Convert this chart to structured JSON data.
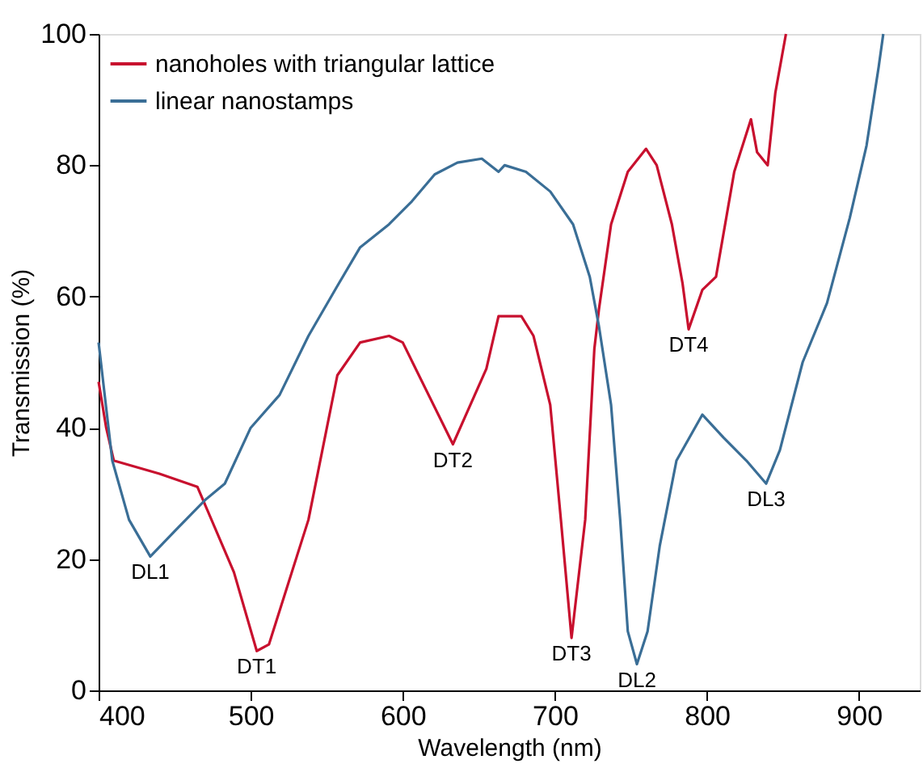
{
  "chart_data": {
    "type": "line",
    "xlabel": "Wavelength (nm)",
    "ylabel": "Transmission (%)",
    "xlim": [
      400,
      940
    ],
    "xticks": [
      400,
      500,
      600,
      700,
      800,
      900
    ],
    "ylim": [
      0,
      100
    ],
    "yticks": [
      0,
      20,
      40,
      60,
      80,
      100
    ],
    "grid": false,
    "legend": "top left",
    "marker": "none",
    "line_style": "solid",
    "series": [
      {
        "name": "nanoholes with triangular lattice",
        "color": "#c8102e",
        "x": [
          400,
          405,
          410,
          440,
          465,
          489,
          504,
          512,
          538,
          557,
          572,
          591,
          600,
          633,
          655,
          663,
          667,
          678,
          686,
          697,
          704,
          711,
          720,
          726,
          729,
          737,
          748,
          760,
          767,
          777,
          784,
          788,
          797,
          806,
          818,
          829,
          833,
          840,
          845,
          852
        ],
        "values": [
          47,
          40,
          35,
          33,
          31,
          18,
          6,
          7,
          26,
          48,
          53,
          54,
          53,
          37.5,
          49,
          57,
          57,
          57,
          54,
          43.5,
          26,
          8,
          26,
          52,
          58,
          71,
          79,
          82.5,
          80,
          71,
          62,
          55,
          61,
          63,
          79,
          87,
          82,
          80,
          91,
          100
        ]
      },
      {
        "name": "linear nanostamps",
        "color": "#3a6e96",
        "x": [
          400,
          409,
          420,
          434,
          451,
          470,
          483,
          500,
          519,
          538,
          557,
          572,
          591,
          606,
          621,
          636,
          652,
          663,
          667,
          681,
          697,
          712,
          723,
          729,
          737,
          743,
          748,
          754,
          761,
          769,
          780,
          797,
          811,
          826,
          839,
          848,
          863,
          879,
          894,
          905,
          913,
          916
        ],
        "values": [
          53,
          35,
          26,
          20.4,
          24.5,
          29,
          31.5,
          40,
          45,
          54,
          61.6,
          67.5,
          71,
          74.5,
          78.6,
          80.4,
          81,
          79,
          80,
          79,
          76,
          71,
          63,
          55.5,
          43.5,
          26,
          9,
          4,
          9,
          22,
          35,
          42,
          38.5,
          35,
          31.5,
          36.6,
          50,
          59,
          72,
          83,
          95,
          100
        ]
      }
    ],
    "annotations": [
      {
        "text": "DL1",
        "x": 434,
        "y": 20.4
      },
      {
        "text": "DT1",
        "x": 504,
        "y": 6
      },
      {
        "text": "DT2",
        "x": 633,
        "y": 37.5
      },
      {
        "text": "DT3",
        "x": 711,
        "y": 8
      },
      {
        "text": "DL2",
        "x": 754,
        "y": 4
      },
      {
        "text": "DT4",
        "x": 788,
        "y": 55
      },
      {
        "text": "DL3",
        "x": 839,
        "y": 31.5
      }
    ]
  }
}
